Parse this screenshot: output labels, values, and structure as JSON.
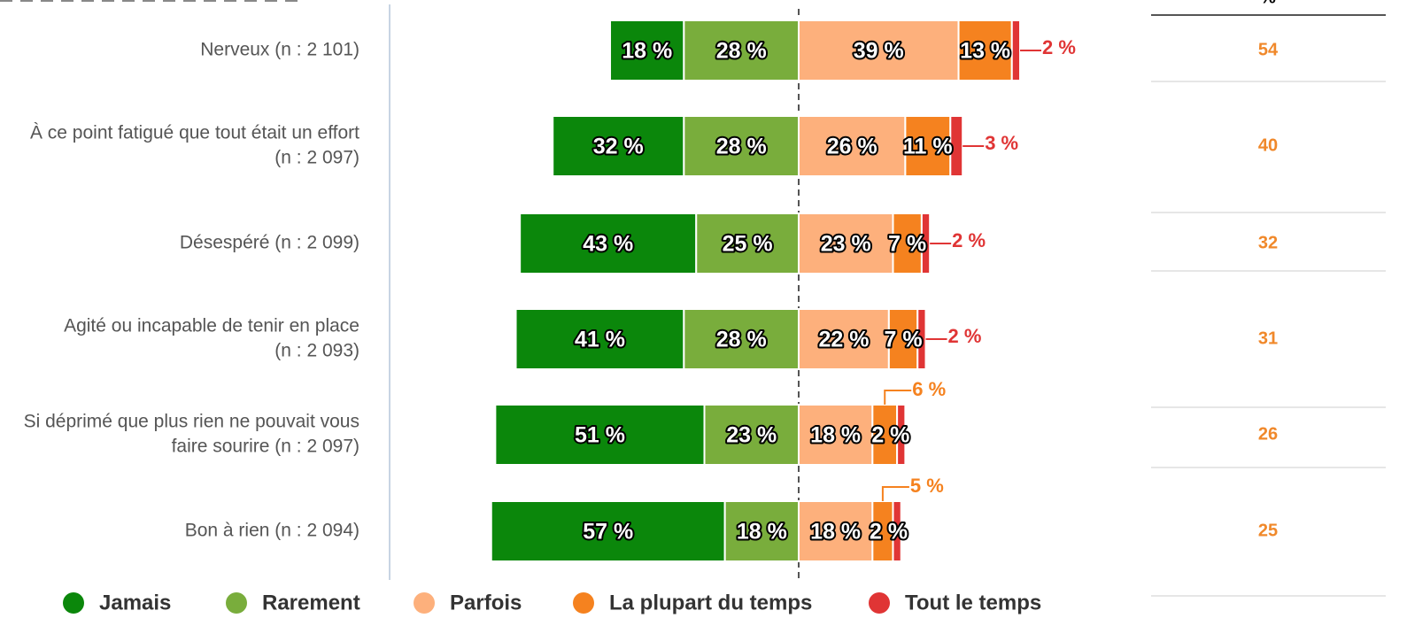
{
  "chart_data": {
    "type": "diverging_bar",
    "categories": [
      [
        "Nerveux (n : 2 101)"
      ],
      [
        "À ce point fatigué que tout était un effort",
        "(n : 2 097)"
      ],
      [
        "Désespéré (n : 2 099)"
      ],
      [
        "Agité ou incapable de tenir en place",
        "(n : 2 093)"
      ],
      [
        "Si déprimé que plus rien ne pouvait vous",
        "faire sourire (n : 2 097)"
      ],
      [
        "Bon à rien (n : 2 094)"
      ]
    ],
    "series": [
      {
        "name": "Jamais",
        "color": "#0b870b",
        "side": "left",
        "values": [
          18,
          32,
          43,
          41,
          51,
          57
        ],
        "value_labels": [
          "18 %",
          "32 %",
          "43 %",
          "41 %",
          "51 %",
          "57 %"
        ]
      },
      {
        "name": "Rarement",
        "color": "#79ad3c",
        "side": "left",
        "values": [
          28,
          28,
          25,
          28,
          23,
          18
        ],
        "value_labels": [
          "28 %",
          "28 %",
          "25 %",
          "28 %",
          "23 %",
          "18 %"
        ]
      },
      {
        "name": "Parfois",
        "color": "#fdb07c",
        "side": "right",
        "values": [
          39,
          26,
          23,
          22,
          18,
          18
        ],
        "value_labels": [
          "39 %",
          "26 %",
          "23 %",
          "22 %",
          "18 %",
          "18 %"
        ]
      },
      {
        "name": "La plupart du temps",
        "color": "#f5821f",
        "side": "right",
        "values": [
          13,
          11,
          7,
          7,
          6,
          5
        ],
        "value_labels": [
          "13 %",
          "11 %",
          "7 %",
          "7 %",
          "6 %",
          "5 %"
        ]
      },
      {
        "name": "Tout le temps",
        "color": "#e03535",
        "side": "right",
        "values": [
          2,
          3,
          2,
          2,
          2,
          2
        ],
        "value_labels": [
          "2 %",
          "3 %",
          "2 %",
          "2 %",
          "2 %",
          "2 %"
        ]
      }
    ],
    "column_header": "%",
    "column_values": [
      54,
      40,
      32,
      31,
      26,
      25
    ],
    "column_color": "#f0882a"
  }
}
